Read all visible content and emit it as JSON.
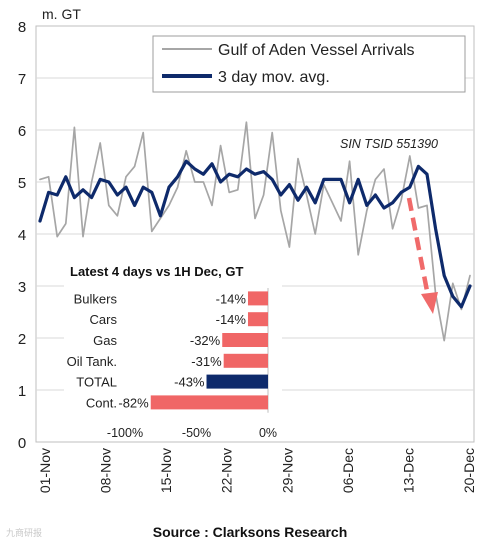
{
  "chart_data": [
    {
      "type": "line",
      "unit_label": "m. GT",
      "annotation": "SIN TSID 551390",
      "ylim": [
        0,
        8
      ],
      "y_ticks": [
        "0",
        "1",
        "2",
        "3",
        "4",
        "5",
        "6",
        "7",
        "8"
      ],
      "x_ticks": [
        "01-Nov",
        "08-Nov",
        "15-Nov",
        "22-Nov",
        "29-Nov",
        "06-Dec",
        "13-Dec",
        "20-Dec"
      ],
      "x_start": "01-Nov",
      "x_end": "20-Dec",
      "grid": true,
      "legend_position": "top-right",
      "series": [
        {
          "name": "Gulf of Aden Vessel Arrivals",
          "color": "#a6a6a6",
          "values": [
            5.05,
            5.1,
            3.95,
            4.2,
            6.05,
            3.95,
            5.0,
            5.75,
            4.55,
            4.35,
            5.1,
            5.3,
            5.95,
            4.05,
            4.3,
            4.55,
            4.9,
            5.6,
            5.0,
            5.0,
            4.55,
            5.7,
            4.8,
            4.85,
            6.15,
            4.3,
            4.75,
            5.95,
            4.45,
            3.75,
            5.45,
            4.75,
            4.0,
            4.95,
            4.6,
            4.25,
            5.4,
            3.6,
            4.45,
            5.05,
            5.25,
            4.1,
            4.65,
            5.5,
            4.5,
            4.55,
            2.85,
            1.95,
            3.05,
            2.55,
            3.2
          ]
        },
        {
          "name": "3 day mov. avg.",
          "color": "#0e2a6b",
          "values": [
            4.25,
            4.8,
            4.75,
            5.1,
            4.7,
            4.85,
            4.7,
            5.05,
            5.0,
            4.75,
            4.9,
            4.55,
            4.9,
            4.8,
            4.35,
            4.9,
            5.1,
            5.4,
            5.25,
            5.15,
            5.35,
            5.0,
            5.15,
            5.1,
            5.25,
            5.15,
            5.2,
            5.05,
            4.75,
            4.95,
            4.65,
            4.9,
            4.6,
            5.05,
            5.05,
            5.05,
            4.6,
            5.05,
            4.55,
            4.75,
            4.5,
            4.6,
            4.8,
            4.9,
            5.3,
            5.15,
            4.1,
            3.2,
            2.8,
            2.6,
            3.0
          ]
        }
      ]
    },
    {
      "type": "bar",
      "orientation": "horizontal",
      "title": "Latest 4 days vs 1H Dec, GT",
      "categories": [
        "Bulkers",
        "Cars",
        "Gas",
        "Oil Tank.",
        "TOTAL",
        "Cont."
      ],
      "values": [
        -14,
        -14,
        -32,
        -31,
        -43,
        -82
      ],
      "value_labels": [
        "-14%",
        "-14%",
        "-32%",
        "-31%",
        "-43%",
        "-82%"
      ],
      "x_ticks": [
        "-100%",
        "-50%",
        "0%"
      ],
      "xlim": [
        -100,
        0
      ],
      "colors": {
        "default": "#f06666",
        "TOTAL": "#0e2a6b"
      }
    }
  ],
  "source": "Source : Clarksons Research",
  "watermark": "九商研报"
}
